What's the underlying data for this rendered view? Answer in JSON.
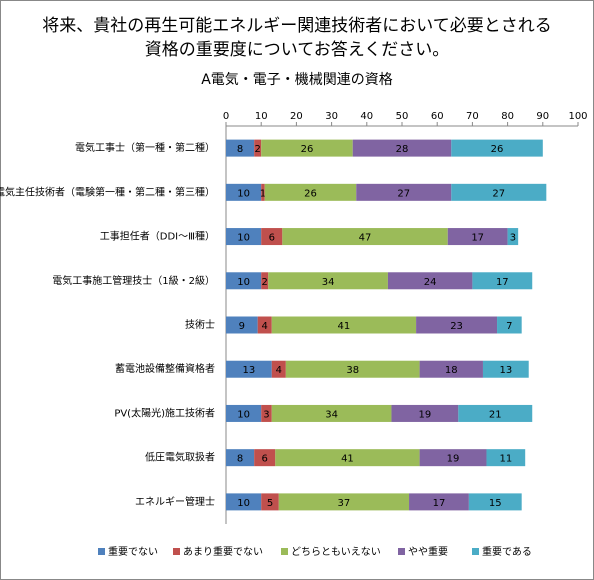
{
  "chart_data": {
    "type": "stacked-bar-horizontal",
    "title": [
      "将来、貴社の再生可能エネルギー関連技術者において必要とされる",
      "資格の重要度についてお答えください。"
    ],
    "subtitle": "A電気・電子・機械関連の資格",
    "categories": [
      "電気工事士（第一種・第二種）",
      "電気主任技術者（電験第一種・第二種・第三種）",
      "工事担任者（DDⅠ～Ⅲ種）",
      "電気工事施工管理技士（1級・2級）",
      "技術士",
      "蓄電池設備整備資格者",
      "PV(太陽光)施工技術者",
      "低圧電気取扱者",
      "エネルギー管理士"
    ],
    "series": [
      {
        "name": "重要でない",
        "color": "#4f81bd",
        "values": [
          8,
          10,
          10,
          10,
          9,
          13,
          10,
          8,
          10
        ]
      },
      {
        "name": "あまり重要でない",
        "color": "#c0504d",
        "values": [
          2,
          1,
          6,
          2,
          4,
          4,
          3,
          6,
          5
        ]
      },
      {
        "name": "どちらともいえない",
        "color": "#9bbb59",
        "values": [
          26,
          26,
          47,
          34,
          41,
          38,
          34,
          41,
          37
        ]
      },
      {
        "name": "やや重要",
        "color": "#8064a2",
        "values": [
          28,
          27,
          17,
          24,
          23,
          18,
          19,
          19,
          17
        ]
      },
      {
        "name": "重要である",
        "color": "#4bacc6",
        "values": [
          26,
          27,
          3,
          17,
          7,
          13,
          21,
          11,
          15
        ]
      }
    ],
    "xlim": [
      0,
      100
    ],
    "xticks": [
      0,
      10,
      20,
      30,
      40,
      50,
      60,
      70,
      80,
      90,
      100
    ],
    "legend": "bottom"
  }
}
